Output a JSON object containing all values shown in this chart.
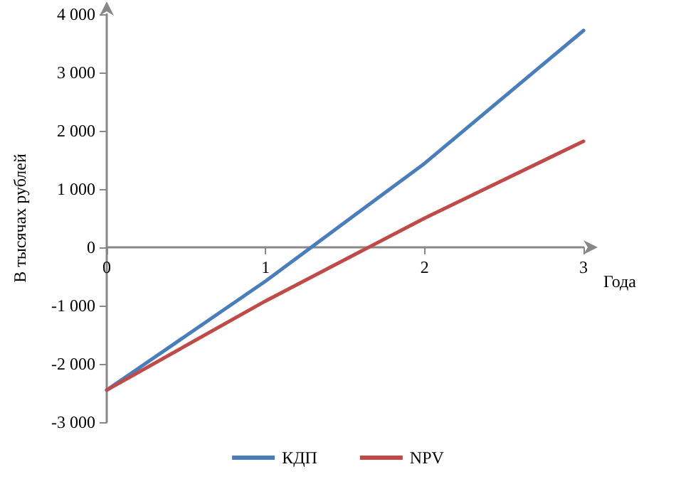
{
  "chart_data": {
    "type": "line",
    "xlabel": "Года",
    "ylabel": "В тысячах рублей",
    "x": [
      0,
      1,
      2,
      3
    ],
    "series": [
      {
        "name": "КДП",
        "color": "#4a7ebb",
        "values": [
          -2450,
          -580,
          1440,
          3720
        ]
      },
      {
        "name": "NPV",
        "color": "#be4b48",
        "values": [
          -2450,
          -920,
          500,
          1820
        ]
      }
    ],
    "xlim": [
      0,
      3
    ],
    "xticks": [
      0,
      1,
      2,
      3
    ],
    "ylim": [
      -3000,
      4000
    ],
    "yticks": [
      {
        "value": -3000,
        "label": "-3 000"
      },
      {
        "value": -2000,
        "label": "-2 000"
      },
      {
        "value": -1000,
        "label": "-1 000"
      },
      0,
      {
        "value": 1000,
        "label": "1 000"
      },
      {
        "value": 2000,
        "label": "2 000"
      },
      {
        "value": 3000,
        "label": "3 000"
      },
      {
        "value": 4000,
        "label": "4 000"
      }
    ],
    "grid": false,
    "legend": "bottom",
    "marker": "none",
    "line_style": "solid"
  }
}
